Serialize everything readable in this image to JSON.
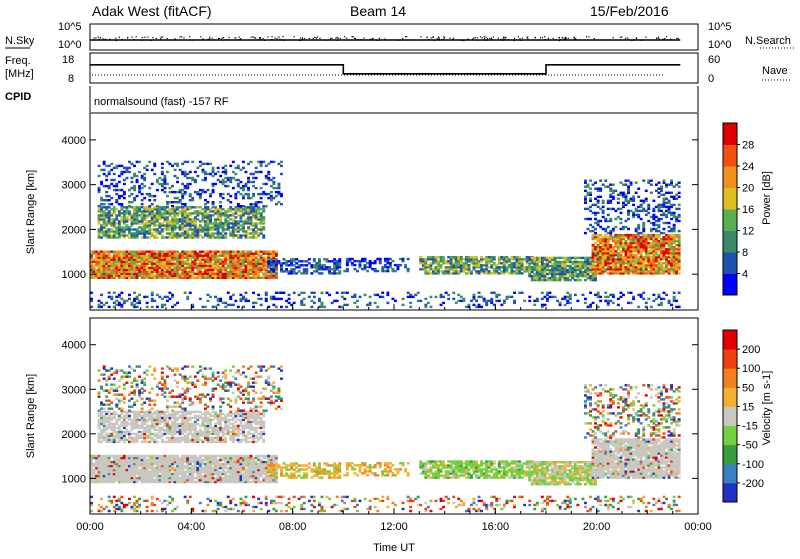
{
  "header": {
    "station": "Adak West (fitACF)",
    "beam": "Beam 14",
    "date": "15/Feb/2016"
  },
  "noise_panel": {
    "left_label": "N.Sky",
    "left_ticks": [
      "10^5",
      "10^0"
    ],
    "right_label": "N.Search",
    "right_ticks": [
      "10^5",
      "10^0"
    ]
  },
  "freq_panel": {
    "left_label_1": "Freq.",
    "left_label_2": "[MHz]",
    "left_ticks": [
      "18",
      "8"
    ],
    "right_label": "Nave",
    "right_ticks": [
      "60",
      "0"
    ]
  },
  "cpid_panel": {
    "label": "CPID",
    "text": "normalsound (fast) -157 RF"
  },
  "chart_data": [
    {
      "type": "heatmap",
      "panel": "power",
      "ylabel": "Slant Range [km]",
      "xlabel": "",
      "yticks": [
        "1000",
        "2000",
        "3000",
        "4000"
      ],
      "ylim": [
        200,
        4600
      ],
      "colorbar_label": "Power [dB]",
      "colorbar_ticks": [
        "4",
        "8",
        "12",
        "16",
        "20",
        "24",
        "28"
      ],
      "colorbar_colors": [
        "#0000ff",
        "#2050b0",
        "#3a8a6a",
        "#58b050",
        "#e0c020",
        "#f09020",
        "#f05010",
        "#e00000"
      ],
      "x_range_hours": [
        0,
        24
      ],
      "x_ticks": [
        "00:00",
        "04:00",
        "08:00",
        "12:00",
        "16:00",
        "20:00",
        "00:00"
      ]
    },
    {
      "type": "heatmap",
      "panel": "velocity",
      "ylabel": "Slant Range [km]",
      "xlabel": "Time UT",
      "yticks": [
        "1000",
        "2000",
        "3000",
        "4000"
      ],
      "ylim": [
        200,
        4600
      ],
      "colorbar_label": "Velocity [m s-1]",
      "colorbar_ticks": [
        "200",
        "100",
        "50",
        "15",
        "-15",
        "-50",
        "-100",
        "-200"
      ],
      "colorbar_colors": [
        "#2030c0",
        "#3a80c0",
        "#3a9a40",
        "#70d040",
        "#c8c8c0",
        "#f0b030",
        "#f08020",
        "#f04010",
        "#e00000"
      ],
      "x_range_hours": [
        0,
        24
      ],
      "x_ticks": [
        "00:00",
        "04:00",
        "08:00",
        "12:00",
        "16:00",
        "20:00",
        "00:00"
      ]
    }
  ],
  "freq_series": {
    "x_hours": [
      0,
      10,
      10,
      18,
      18,
      23.3
    ],
    "freq_mhz": [
      14.5,
      14.5,
      10.3,
      10.3,
      14.5,
      14.5
    ]
  }
}
